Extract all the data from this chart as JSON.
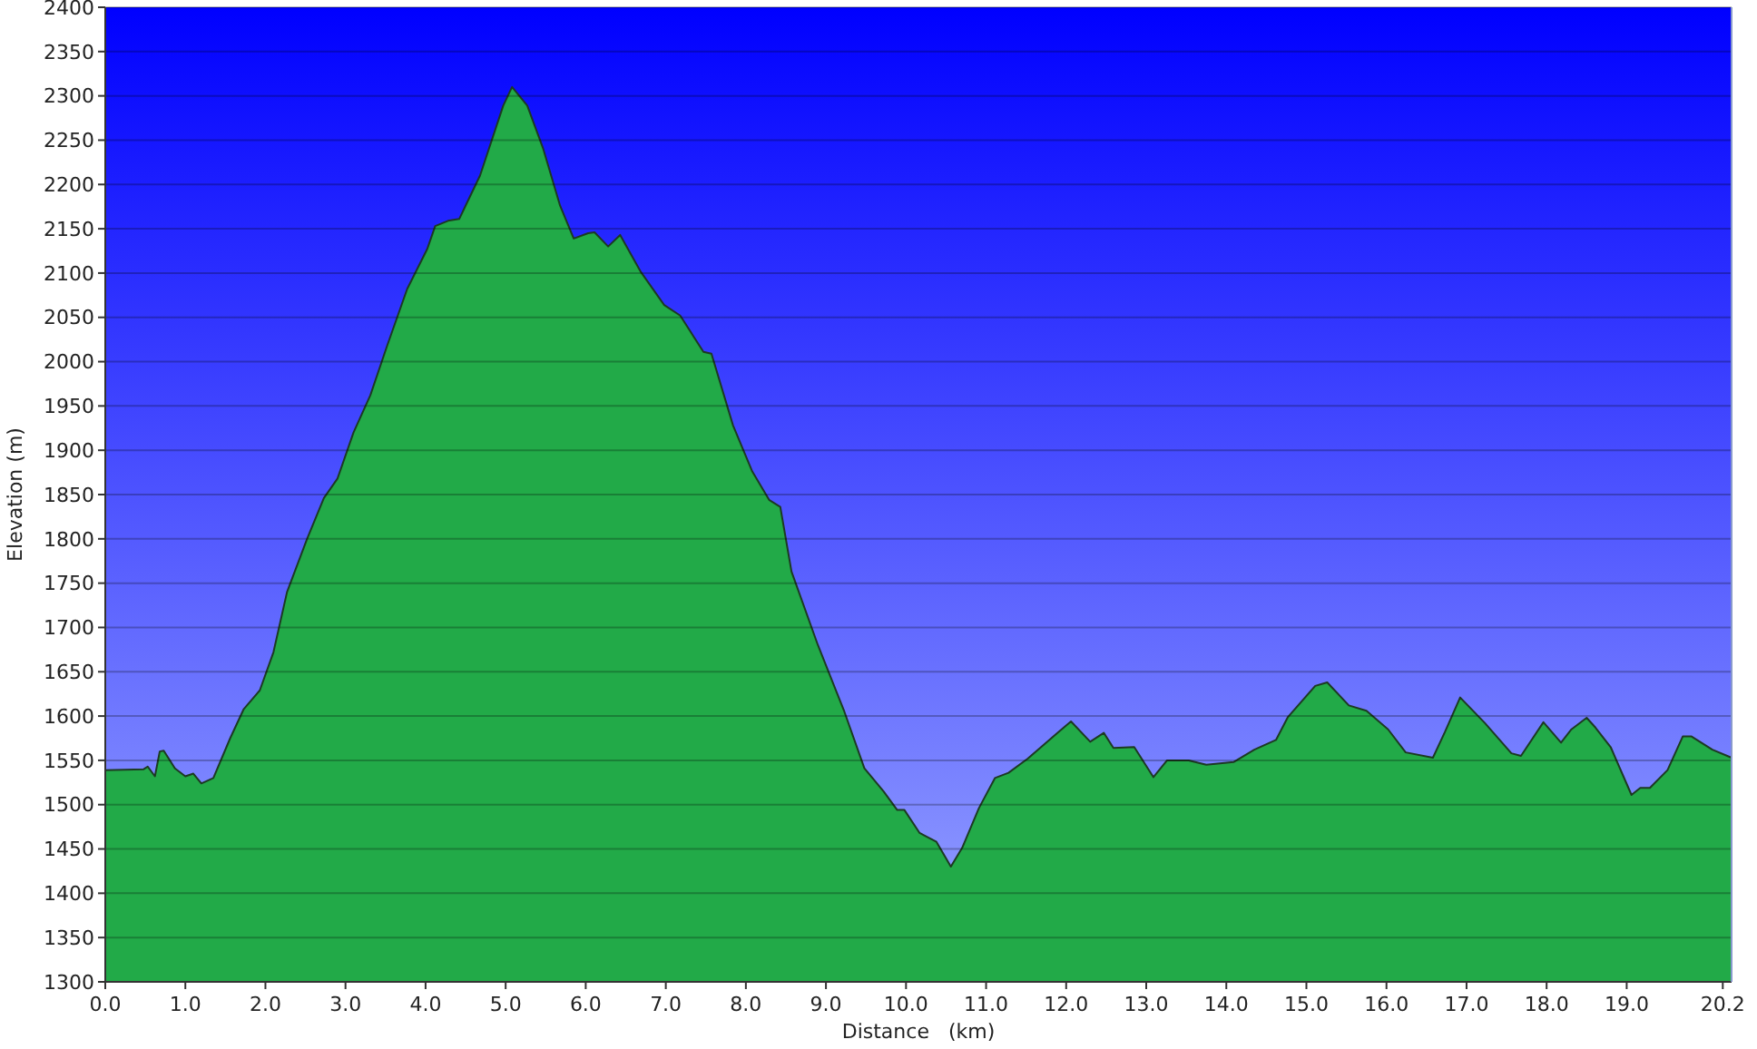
{
  "chart_data": {
    "type": "area",
    "xlabel": "Distance   (km)",
    "ylabel": "Elevation (m)",
    "color": "#22aa48",
    "grid": "y",
    "xlim": [
      0,
      20.31
    ],
    "ylim": [
      1300,
      2400
    ],
    "xticks": [
      {
        "value": 0,
        "label": "0.0"
      },
      {
        "value": 1,
        "label": "1.0"
      },
      {
        "value": 2,
        "label": "2.0"
      },
      {
        "value": 3,
        "label": "3.0"
      },
      {
        "value": 4,
        "label": "4.0"
      },
      {
        "value": 5,
        "label": "5.0"
      },
      {
        "value": 6,
        "label": "6.0"
      },
      {
        "value": 7,
        "label": "7.0"
      },
      {
        "value": 8,
        "label": "8.0"
      },
      {
        "value": 9,
        "label": "9.0"
      },
      {
        "value": 10,
        "label": "10.0"
      },
      {
        "value": 11,
        "label": "11.0"
      },
      {
        "value": 12,
        "label": "12.0"
      },
      {
        "value": 13,
        "label": "13.0"
      },
      {
        "value": 14,
        "label": "14.0"
      },
      {
        "value": 15,
        "label": "15.0"
      },
      {
        "value": 16,
        "label": "16.0"
      },
      {
        "value": 17,
        "label": "17.0"
      },
      {
        "value": 18,
        "label": "18.0"
      },
      {
        "value": 19,
        "label": "19.0"
      },
      20.2
    ],
    "yticks": [
      1300,
      1350,
      1400,
      1450,
      1500,
      1550,
      1600,
      1650,
      1700,
      1750,
      1800,
      1850,
      1900,
      1950,
      2000,
      2050,
      2100,
      2150,
      2200,
      2250,
      2300,
      2350,
      2400
    ],
    "x": [
      0,
      0.48,
      0.53,
      0.62,
      0.68,
      0.73,
      0.87,
      1.0,
      1.1,
      1.2,
      1.35,
      1.56,
      1.73,
      1.93,
      2.1,
      2.27,
      2.52,
      2.73,
      2.9,
      3.1,
      3.31,
      3.52,
      3.77,
      4.02,
      4.12,
      4.28,
      4.42,
      4.68,
      4.97,
      5.08,
      5.27,
      5.47,
      5.68,
      5.85,
      6.03,
      6.11,
      6.28,
      6.43,
      6.69,
      6.98,
      7.18,
      7.47,
      7.57,
      7.84,
      8.08,
      8.29,
      8.43,
      8.57,
      8.9,
      9.23,
      9.48,
      9.72,
      9.89,
      9.98,
      10.17,
      10.38,
      10.56,
      10.7,
      10.91,
      11.11,
      11.28,
      11.52,
      11.89,
      12.06,
      12.3,
      12.47,
      12.59,
      12.85,
      13.09,
      13.26,
      13.53,
      13.75,
      14.09,
      14.35,
      14.62,
      14.77,
      15.11,
      15.26,
      15.53,
      15.75,
      16.02,
      16.24,
      16.58,
      16.73,
      16.92,
      17.23,
      17.56,
      17.68,
      17.96,
      18.18,
      18.31,
      18.5,
      18.61,
      18.8,
      19.06,
      19.17,
      19.29,
      19.51,
      19.7,
      19.81,
      20.07,
      20.31
    ],
    "values": [
      1539,
      1540,
      1543,
      1532,
      1560,
      1561,
      1541,
      1532,
      1535,
      1524,
      1530,
      1575,
      1608,
      1629,
      1672,
      1740,
      1800,
      1846,
      1868,
      1920,
      1962,
      2018,
      2082,
      2127,
      2153,
      2159,
      2161,
      2210,
      2289,
      2310,
      2289,
      2240,
      2176,
      2139,
      2145,
      2146,
      2130,
      2143,
      2101,
      2064,
      2052,
      2011,
      2009,
      1928,
      1876,
      1844,
      1836,
      1763,
      1680,
      1605,
      1541,
      1515,
      1494,
      1494,
      1468,
      1458,
      1430,
      1451,
      1496,
      1530,
      1536,
      1552,
      1581,
      1594,
      1571,
      1581,
      1564,
      1565,
      1531,
      1550,
      1550,
      1545,
      1548,
      1562,
      1573,
      1599,
      1634,
      1638,
      1612,
      1606,
      1585,
      1559,
      1553,
      1582,
      1621,
      1592,
      1558,
      1555,
      1593,
      1570,
      1585,
      1598,
      1587,
      1565,
      1511,
      1519,
      1519,
      1539,
      1577,
      1577,
      1562,
      1553
    ]
  }
}
